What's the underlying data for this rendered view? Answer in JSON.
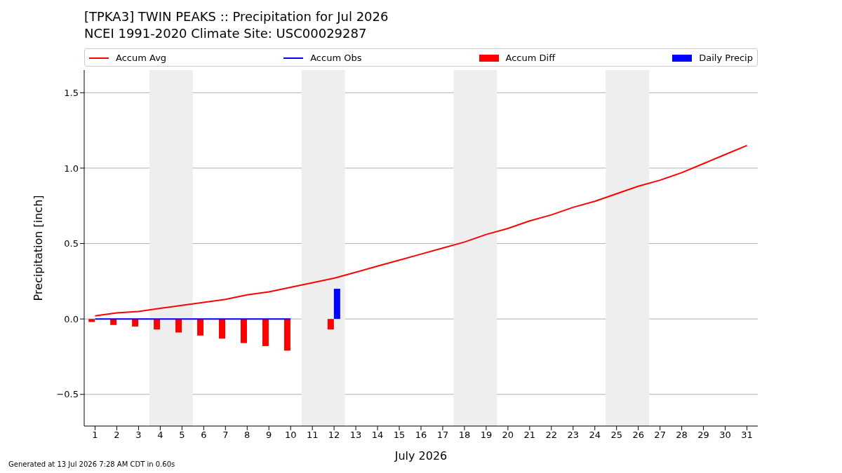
{
  "chart_data": {
    "type": "bar",
    "title": "[TPKA3] TWIN PEAKS :: Precipitation for Jul 2026",
    "subtitle": "NCEI 1991-2020 Climate Site: USC00029287",
    "xlabel": "July 2026",
    "ylabel": "Precipitation [inch]",
    "x": [
      1,
      2,
      3,
      4,
      5,
      6,
      7,
      8,
      9,
      10,
      11,
      12,
      13,
      14,
      15,
      16,
      17,
      18,
      19,
      20,
      21,
      22,
      23,
      24,
      25,
      26,
      27,
      28,
      29,
      30,
      31
    ],
    "series": [
      {
        "name": "Accum Avg",
        "type": "line",
        "color": "#ff0000",
        "values": [
          0.02,
          0.04,
          0.05,
          0.07,
          0.09,
          0.11,
          0.13,
          0.16,
          0.18,
          0.21,
          0.24,
          0.27,
          0.31,
          0.35,
          0.39,
          0.43,
          0.47,
          0.51,
          0.56,
          0.6,
          0.65,
          0.69,
          0.74,
          0.78,
          0.83,
          0.88,
          0.92,
          0.97,
          1.03,
          1.09,
          1.15
        ]
      },
      {
        "name": "Accum Obs",
        "type": "line",
        "color": "#0000ff",
        "values": [
          0,
          0,
          0,
          0,
          0,
          0,
          0,
          0,
          0,
          0,
          null,
          null,
          null,
          null,
          null,
          null,
          null,
          null,
          null,
          null,
          null,
          null,
          null,
          null,
          null,
          null,
          null,
          null,
          null,
          null,
          null
        ]
      },
      {
        "name": "Accum Diff",
        "color": "#ff0000",
        "values": [
          -0.02,
          -0.04,
          -0.05,
          -0.07,
          -0.09,
          -0.11,
          -0.13,
          -0.16,
          -0.18,
          -0.21,
          null,
          -0.07,
          null,
          null,
          null,
          null,
          null,
          null,
          null,
          null,
          null,
          null,
          null,
          null,
          null,
          null,
          null,
          null,
          null,
          null,
          null
        ]
      },
      {
        "name": "Daily Precip",
        "color": "#0000ff",
        "values": [
          0,
          0,
          0,
          0,
          0,
          0,
          0,
          0,
          0,
          0,
          null,
          0.2,
          null,
          null,
          null,
          null,
          null,
          null,
          null,
          null,
          null,
          null,
          null,
          null,
          null,
          null,
          null,
          null,
          null,
          null,
          null
        ]
      }
    ],
    "xlim": [
      0.5,
      31.5
    ],
    "xticks": [
      1,
      2,
      3,
      4,
      5,
      6,
      7,
      8,
      9,
      10,
      11,
      12,
      13,
      14,
      15,
      16,
      17,
      18,
      19,
      20,
      21,
      22,
      23,
      24,
      25,
      26,
      27,
      28,
      29,
      30,
      31
    ],
    "ylim": [
      -0.71,
      1.65
    ],
    "yticks": [
      {
        "value": -0.5,
        "label": "−0.5"
      },
      {
        "value": 0,
        "label": "0.0"
      },
      {
        "value": 0.5,
        "label": "0.5"
      },
      {
        "value": 1,
        "label": "1.0"
      },
      {
        "value": 1.5,
        "label": "1.5"
      }
    ],
    "bands": [
      {
        "axis": "x",
        "from": 3.5,
        "to": 5.5,
        "color": "#eeeeee"
      },
      {
        "axis": "x",
        "from": 10.5,
        "to": 12.5,
        "color": "#eeeeee"
      },
      {
        "axis": "x",
        "from": 17.5,
        "to": 19.5,
        "color": "#eeeeee"
      },
      {
        "axis": "x",
        "from": 24.5,
        "to": 26.5,
        "color": "#eeeeee"
      }
    ],
    "grid": "y",
    "legend": "top",
    "marker": "none",
    "line_style": "solid",
    "annotations": [
      "Generated at 13 Jul 2026 7:28 AM CDT in 0.60s"
    ]
  }
}
